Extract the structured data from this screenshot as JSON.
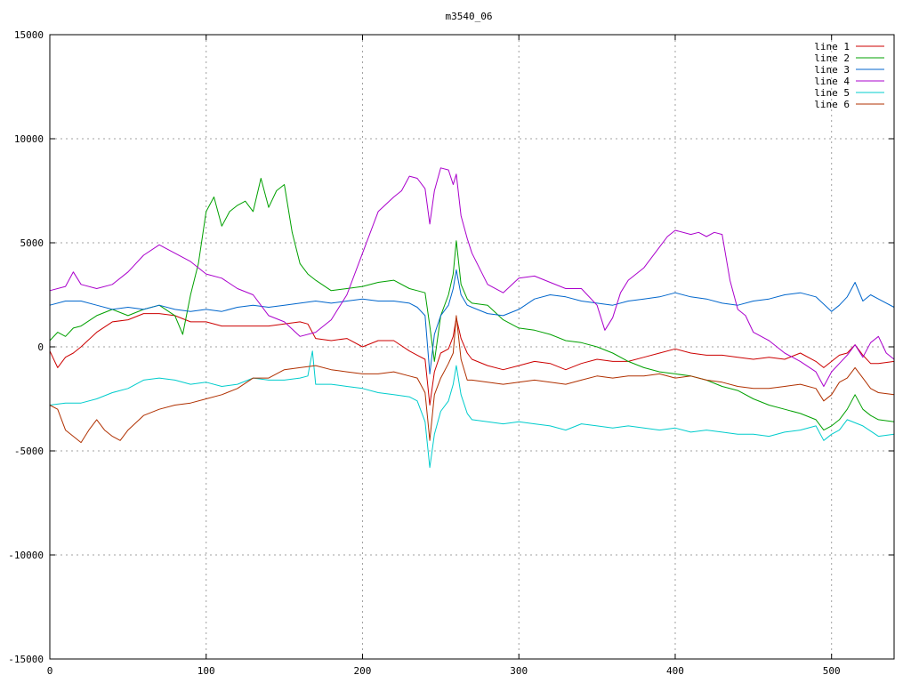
{
  "chart_data": {
    "type": "line",
    "title": "m3540_06",
    "xlabel": "",
    "ylabel": "",
    "xlim": [
      0,
      540
    ],
    "ylim": [
      -15000,
      15000
    ],
    "xticks": [
      0,
      100,
      200,
      300,
      400,
      500
    ],
    "yticks": [
      -15000,
      -10000,
      -5000,
      0,
      5000,
      10000,
      15000
    ],
    "grid": true,
    "legend_position": "top-right",
    "series": [
      {
        "name": "line 1",
        "color": "#cc0000",
        "x": [
          0,
          5,
          10,
          15,
          20,
          30,
          40,
          50,
          60,
          70,
          80,
          90,
          100,
          110,
          120,
          130,
          140,
          150,
          160,
          165,
          170,
          180,
          190,
          200,
          210,
          220,
          230,
          235,
          240,
          243,
          246,
          250,
          255,
          258,
          260,
          263,
          267,
          270,
          280,
          290,
          300,
          310,
          320,
          330,
          340,
          350,
          360,
          370,
          380,
          390,
          400,
          410,
          420,
          430,
          440,
          450,
          460,
          470,
          480,
          490,
          495,
          500,
          505,
          510,
          515,
          520,
          525,
          530,
          540
        ],
        "y": [
          -200,
          -1000,
          -500,
          -300,
          0,
          700,
          1200,
          1300,
          1600,
          1600,
          1500,
          1200,
          1200,
          1000,
          1000,
          1000,
          1000,
          1100,
          1200,
          1100,
          400,
          300,
          400,
          0,
          300,
          300,
          -200,
          -400,
          -600,
          -2800,
          -1200,
          -300,
          -100,
          500,
          1400,
          400,
          -300,
          -600,
          -900,
          -1100,
          -900,
          -700,
          -800,
          -1100,
          -800,
          -600,
          -700,
          -700,
          -500,
          -300,
          -100,
          -300,
          -400,
          -400,
          -500,
          -600,
          -500,
          -600,
          -300,
          -700,
          -1000,
          -700,
          -400,
          -300,
          100,
          -400,
          -800,
          -800,
          -700
        ]
      },
      {
        "name": "line 2",
        "color": "#00a000",
        "x": [
          0,
          5,
          10,
          15,
          20,
          30,
          40,
          50,
          60,
          70,
          80,
          85,
          90,
          95,
          100,
          105,
          110,
          115,
          120,
          125,
          130,
          135,
          140,
          145,
          150,
          155,
          160,
          165,
          170,
          180,
          190,
          200,
          210,
          220,
          230,
          235,
          240,
          243,
          246,
          250,
          255,
          258,
          260,
          263,
          267,
          270,
          280,
          290,
          300,
          310,
          320,
          330,
          340,
          350,
          360,
          370,
          380,
          390,
          400,
          410,
          420,
          430,
          440,
          450,
          460,
          470,
          480,
          490,
          495,
          500,
          505,
          510,
          515,
          520,
          525,
          530,
          540
        ],
        "y": [
          300,
          700,
          500,
          900,
          1000,
          1500,
          1800,
          1500,
          1800,
          2000,
          1500,
          600,
          2500,
          4000,
          6500,
          7200,
          5800,
          6500,
          6800,
          7000,
          6500,
          8100,
          6700,
          7500,
          7800,
          5500,
          4000,
          3500,
          3200,
          2700,
          2800,
          2900,
          3100,
          3200,
          2800,
          2700,
          2600,
          1000,
          -700,
          1500,
          2500,
          3500,
          5100,
          3000,
          2300,
          2100,
          2000,
          1300,
          900,
          800,
          600,
          300,
          200,
          0,
          -300,
          -700,
          -1000,
          -1200,
          -1300,
          -1400,
          -1600,
          -1900,
          -2100,
          -2500,
          -2800,
          -3000,
          -3200,
          -3500,
          -4000,
          -3800,
          -3500,
          -3000,
          -2300,
          -3000,
          -3300,
          -3500,
          -3600
        ]
      },
      {
        "name": "line 3",
        "color": "#0066cc",
        "x": [
          0,
          10,
          20,
          30,
          40,
          50,
          60,
          70,
          80,
          90,
          100,
          110,
          120,
          130,
          140,
          150,
          160,
          170,
          180,
          190,
          200,
          210,
          220,
          230,
          235,
          240,
          243,
          246,
          250,
          255,
          258,
          260,
          263,
          267,
          270,
          280,
          290,
          300,
          310,
          320,
          330,
          340,
          350,
          360,
          370,
          380,
          390,
          400,
          410,
          420,
          430,
          440,
          450,
          460,
          470,
          480,
          490,
          500,
          505,
          510,
          515,
          520,
          525,
          530,
          540
        ],
        "y": [
          2000,
          2200,
          2200,
          2000,
          1800,
          1900,
          1800,
          2000,
          1800,
          1700,
          1800,
          1700,
          1900,
          2000,
          1900,
          2000,
          2100,
          2200,
          2100,
          2200,
          2300,
          2200,
          2200,
          2100,
          1900,
          1500,
          -1300,
          600,
          1500,
          2000,
          2800,
          3700,
          2500,
          2000,
          1900,
          1600,
          1500,
          1800,
          2300,
          2500,
          2400,
          2200,
          2100,
          2000,
          2200,
          2300,
          2400,
          2600,
          2400,
          2300,
          2100,
          2000,
          2200,
          2300,
          2500,
          2600,
          2400,
          1700,
          2000,
          2400,
          3100,
          2200,
          2500,
          2300,
          1900
        ]
      },
      {
        "name": "line 4",
        "color": "#aa00cc",
        "x": [
          0,
          10,
          15,
          20,
          30,
          40,
          50,
          60,
          70,
          80,
          90,
          100,
          110,
          120,
          130,
          140,
          150,
          160,
          170,
          180,
          190,
          200,
          210,
          220,
          225,
          230,
          235,
          240,
          243,
          246,
          250,
          255,
          258,
          260,
          263,
          267,
          270,
          280,
          290,
          300,
          310,
          320,
          330,
          340,
          350,
          355,
          360,
          365,
          370,
          380,
          390,
          395,
          400,
          410,
          415,
          420,
          425,
          430,
          435,
          440,
          445,
          450,
          460,
          470,
          480,
          490,
          495,
          500,
          505,
          510,
          515,
          520,
          525,
          530,
          535,
          540
        ],
        "y": [
          2700,
          2900,
          3600,
          3000,
          2800,
          3000,
          3600,
          4400,
          4900,
          4500,
          4100,
          3500,
          3300,
          2800,
          2500,
          1500,
          1200,
          500,
          700,
          1300,
          2500,
          4500,
          6500,
          7200,
          7500,
          8200,
          8100,
          7600,
          5900,
          7500,
          8600,
          8500,
          7800,
          8300,
          6300,
          5200,
          4500,
          3000,
          2600,
          3300,
          3400,
          3100,
          2800,
          2800,
          2000,
          800,
          1400,
          2600,
          3200,
          3800,
          4800,
          5300,
          5600,
          5400,
          5500,
          5300,
          5500,
          5400,
          3200,
          1800,
          1500,
          700,
          300,
          -300,
          -700,
          -1200,
          -1900,
          -1200,
          -800,
          -400,
          100,
          -500,
          200,
          500,
          -300,
          -600
        ]
      },
      {
        "name": "line 5",
        "color": "#00cccc",
        "x": [
          0,
          10,
          20,
          30,
          40,
          50,
          60,
          70,
          80,
          90,
          100,
          110,
          120,
          130,
          140,
          150,
          160,
          165,
          168,
          170,
          180,
          190,
          200,
          210,
          220,
          230,
          235,
          240,
          243,
          246,
          250,
          255,
          258,
          260,
          263,
          267,
          270,
          280,
          290,
          300,
          310,
          320,
          330,
          340,
          350,
          360,
          370,
          380,
          390,
          400,
          410,
          420,
          430,
          440,
          450,
          460,
          470,
          480,
          490,
          495,
          500,
          505,
          510,
          520,
          530,
          540
        ],
        "y": [
          -2800,
          -2700,
          -2700,
          -2500,
          -2200,
          -2000,
          -1600,
          -1500,
          -1600,
          -1800,
          -1700,
          -1900,
          -1800,
          -1500,
          -1600,
          -1600,
          -1500,
          -1400,
          -200,
          -1800,
          -1800,
          -1900,
          -2000,
          -2200,
          -2300,
          -2400,
          -2600,
          -3600,
          -5800,
          -4200,
          -3100,
          -2600,
          -1800,
          -900,
          -2300,
          -3200,
          -3500,
          -3600,
          -3700,
          -3600,
          -3700,
          -3800,
          -4000,
          -3700,
          -3800,
          -3900,
          -3800,
          -3900,
          -4000,
          -3900,
          -4100,
          -4000,
          -4100,
          -4200,
          -4200,
          -4300,
          -4100,
          -4000,
          -3800,
          -4500,
          -4200,
          -4000,
          -3500,
          -3800,
          -4300,
          -4200
        ]
      },
      {
        "name": "line 6",
        "color": "#b03000",
        "x": [
          0,
          5,
          10,
          15,
          20,
          25,
          30,
          35,
          40,
          45,
          50,
          60,
          70,
          80,
          90,
          100,
          110,
          120,
          130,
          140,
          150,
          160,
          170,
          180,
          190,
          200,
          210,
          220,
          230,
          235,
          240,
          243,
          246,
          250,
          255,
          258,
          260,
          263,
          267,
          270,
          280,
          290,
          300,
          310,
          320,
          330,
          340,
          350,
          360,
          370,
          380,
          390,
          400,
          410,
          420,
          430,
          440,
          450,
          460,
          470,
          480,
          490,
          495,
          500,
          505,
          510,
          515,
          520,
          525,
          530,
          540
        ],
        "y": [
          -2800,
          -3000,
          -4000,
          -4300,
          -4600,
          -4000,
          -3500,
          -4000,
          -4300,
          -4500,
          -4000,
          -3300,
          -3000,
          -2800,
          -2700,
          -2500,
          -2300,
          -2000,
          -1500,
          -1500,
          -1100,
          -1000,
          -900,
          -1100,
          -1200,
          -1300,
          -1300,
          -1200,
          -1400,
          -1500,
          -2200,
          -4500,
          -2300,
          -1500,
          -800,
          -300,
          1500,
          -600,
          -1600,
          -1600,
          -1700,
          -1800,
          -1700,
          -1600,
          -1700,
          -1800,
          -1600,
          -1400,
          -1500,
          -1400,
          -1400,
          -1300,
          -1500,
          -1400,
          -1600,
          -1700,
          -1900,
          -2000,
          -2000,
          -1900,
          -1800,
          -2000,
          -2600,
          -2300,
          -1700,
          -1500,
          -1000,
          -1500,
          -2000,
          -2200,
          -2300
        ]
      }
    ]
  }
}
